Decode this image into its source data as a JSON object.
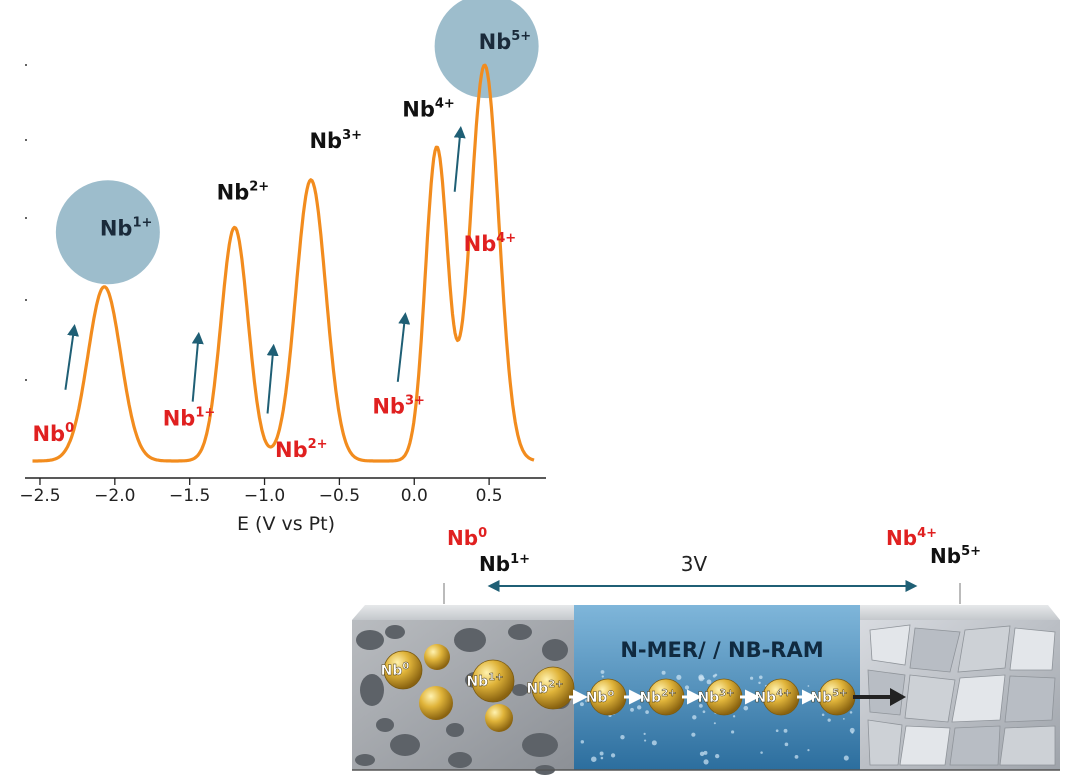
{
  "chart_data": {
    "type": "line",
    "xlabel": "E (V vs Pt)",
    "xlim": [
      -2.6,
      0.88
    ],
    "ylim": [
      0,
      1
    ],
    "xticks": [
      "−2.5",
      "−2.0",
      "−1.5",
      "−1.0",
      "−0.5",
      "0.0",
      "0.5"
    ],
    "xtick_values": [
      -2.5,
      -2.0,
      -1.5,
      -1.0,
      -0.5,
      0.0,
      0.5
    ],
    "grid": false,
    "series": [
      {
        "color": "#f28c1e",
        "peaks": [
          {
            "center": -2.07,
            "height": 0.44,
            "width": 0.11
          },
          {
            "center": -1.2,
            "height": 0.59,
            "width": 0.09
          },
          {
            "center": -0.69,
            "height": 0.71,
            "width": 0.1
          },
          {
            "center": 0.15,
            "height": 0.79,
            "width": 0.075
          },
          {
            "center": 0.47,
            "height": 1.0,
            "width": 0.095
          }
        ]
      }
    ],
    "annotations": {
      "oxidized": [
        {
          "base": "Nb",
          "sup": "1+",
          "x": -2.1,
          "y": 0.57,
          "circled": true
        },
        {
          "base": "Nb",
          "sup": "2+",
          "x": -1.32,
          "y": 0.66
        },
        {
          "base": "Nb",
          "sup": "3+",
          "x": -0.7,
          "y": 0.79
        },
        {
          "base": "Nb",
          "sup": "4+",
          "x": -0.08,
          "y": 0.87
        },
        {
          "base": "Nb",
          "sup": "5+",
          "x": 0.43,
          "y": 1.04,
          "circled": true
        }
      ],
      "reduced": [
        {
          "base": "Nb",
          "sup": "0",
          "x": -2.55,
          "y": 0.05
        },
        {
          "base": "Nb",
          "sup": "1+",
          "x": -1.68,
          "y": 0.09
        },
        {
          "base": "Nb",
          "sup": "2+",
          "x": -0.93,
          "y": 0.01
        },
        {
          "base": "Nb",
          "sup": "3+",
          "x": -0.28,
          "y": 0.12
        },
        {
          "base": "Nb",
          "sup": "4+",
          "x": 0.33,
          "y": 0.53
        }
      ],
      "arrows": [
        {
          "x0": -2.33,
          "y0": 0.18,
          "x1": -2.27,
          "y1": 0.34
        },
        {
          "x0": -1.48,
          "y0": 0.15,
          "x1": -1.44,
          "y1": 0.32
        },
        {
          "x0": -0.98,
          "y0": 0.12,
          "x1": -0.94,
          "y1": 0.29
        },
        {
          "x0": -0.11,
          "y0": 0.2,
          "x1": -0.06,
          "y1": 0.37
        },
        {
          "x0": 0.27,
          "y0": 0.68,
          "x1": 0.31,
          "y1": 0.84
        }
      ]
    }
  },
  "diagram": {
    "left_labels": {
      "red": {
        "base": "Nb",
        "sup": "0"
      },
      "black": {
        "base": "Nb",
        "sup": "1+"
      }
    },
    "right_labels": {
      "red": {
        "base": "Nb",
        "sup": "4+"
      },
      "black": {
        "base": "Nb",
        "sup": "5+"
      }
    },
    "span_label": "3V",
    "center_title": "N-MER/ / NB-RAM",
    "porous_particles": [
      {
        "base": "Nb",
        "sup": "0"
      },
      {
        "base": "Nb",
        "sup": "1+"
      },
      {
        "base": "Nb",
        "sup": "2+"
      }
    ],
    "chain_particles": [
      {
        "base": "Nb",
        "sup": "o"
      },
      {
        "base": "Nb",
        "sup": "2+"
      },
      {
        "base": "Nb",
        "sup": "3+"
      },
      {
        "base": "Nb",
        "sup": "4+"
      },
      {
        "base": "Nb",
        "sup": "5+"
      }
    ],
    "colors": {
      "teal": "#2a6a80",
      "red": "#e02020",
      "gold": "#d4a42a",
      "blue": "#4a8fbc"
    }
  }
}
